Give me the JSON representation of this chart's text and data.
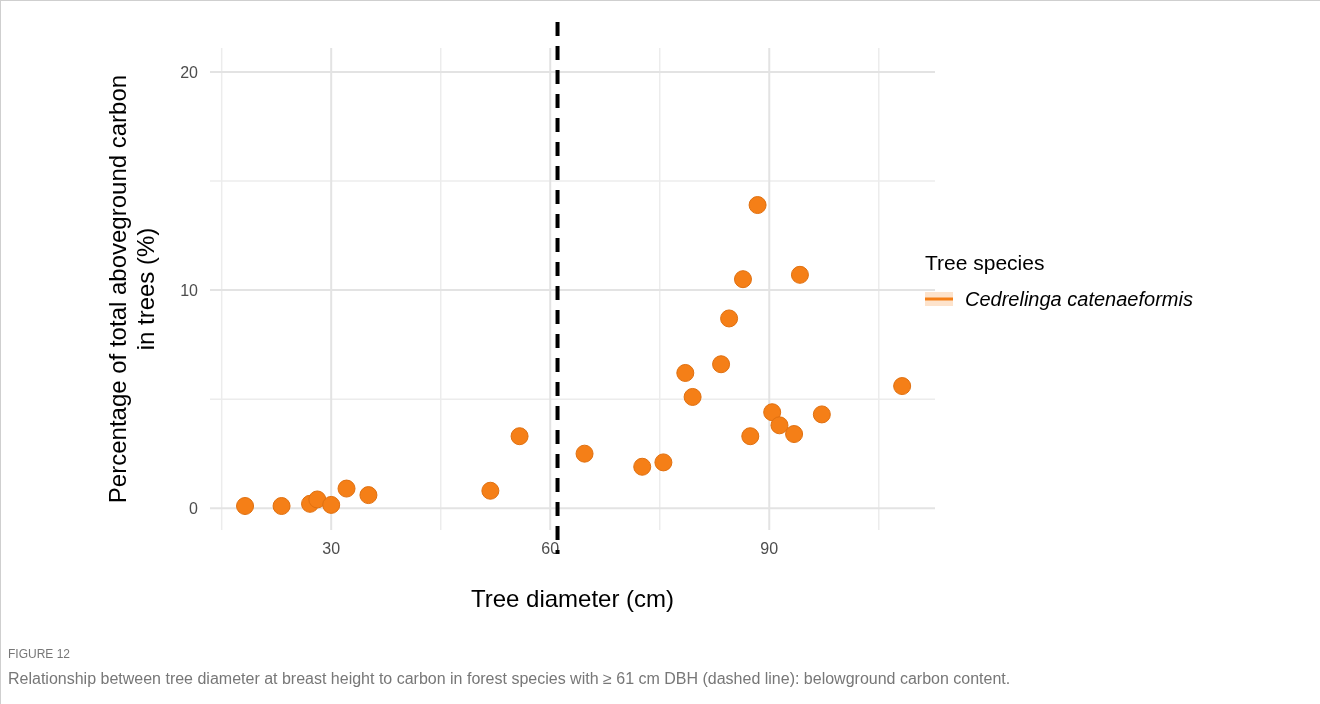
{
  "chart_data": {
    "type": "scatter",
    "xlabel": "Tree diameter (cm)",
    "ylabel": "Percentage of total aboveground carbon in trees (%)",
    "legend_title": "Tree species",
    "legend": "right",
    "grid": true,
    "marker": "circle",
    "xlim": [
      13.4,
      112.7
    ],
    "ylim": [
      -1,
      21.1
    ],
    "xticks": [
      30,
      60,
      90
    ],
    "yticks": [
      0,
      10,
      20
    ],
    "x": [
      18.2,
      23.2,
      27.1,
      28.1,
      30,
      32.1,
      35.1,
      51.8,
      55.8,
      64.7,
      72.6,
      75.5,
      78.5,
      79.5,
      83.4,
      84.5,
      86.4,
      88.4,
      87.4,
      90.4,
      91.4,
      93.4,
      94.2,
      97.2,
      108.2
    ],
    "series": [
      {
        "name": "Cedrelinga catenaeformis",
        "color": "#f57f17",
        "values": [
          0.1,
          0.1,
          0.2,
          0.4,
          0.15,
          0.9,
          0.6,
          0.8,
          3.3,
          2.5,
          1.9,
          2.1,
          6.2,
          5.1,
          6.6,
          8.7,
          10.5,
          13.9,
          3.3,
          4.4,
          3.8,
          3.4,
          10.7,
          4.3,
          5.6
        ]
      }
    ],
    "ref_lines": [
      {
        "axis": "x",
        "value": 61,
        "color": "#000000",
        "line_style": "dashed"
      }
    ],
    "annotations": [
      "FIGURE 12",
      "Relationship between tree diameter at breast height to carbon in forest species with ≥ 61 cm DBH (dashed line): belowground carbon content."
    ]
  }
}
